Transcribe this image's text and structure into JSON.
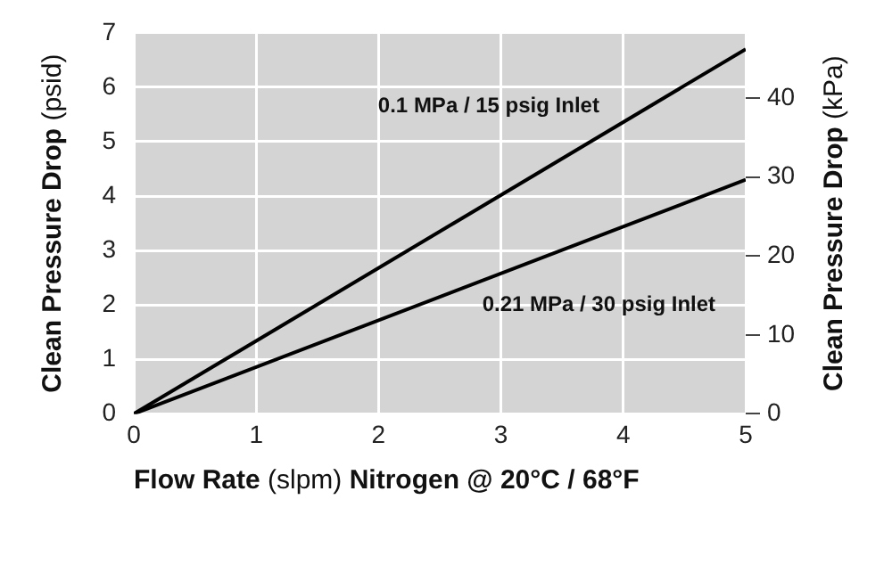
{
  "chart_data": {
    "type": "line",
    "x": [
      0,
      5
    ],
    "series": [
      {
        "name": "0.1 MPa / 15 psig Inlet",
        "color": "#000000",
        "values": [
          0,
          6.7
        ]
      },
      {
        "name": "0.21 MPa / 30 psig Inlet",
        "color": "#000000",
        "values": [
          0,
          4.3
        ]
      }
    ],
    "xlabel": "Flow Rate (slpm) Nitrogen @ 20°C / 68°F",
    "ylabel": "Clean Pressure Drop (psid)",
    "y2label": "Clean Pressure Drop (kPa)",
    "xlim": [
      0,
      5
    ],
    "xticks": [
      0,
      1,
      2,
      3,
      4,
      5
    ],
    "ylim": [
      0,
      7
    ],
    "yticks": [
      0,
      1,
      2,
      3,
      4,
      5,
      6,
      7
    ],
    "y2lim": [
      0,
      48.26
    ],
    "y2ticks": [
      0,
      10,
      20,
      30,
      40
    ],
    "grid": true,
    "marker": "none",
    "line_style": "solid",
    "legend": false
  }
}
